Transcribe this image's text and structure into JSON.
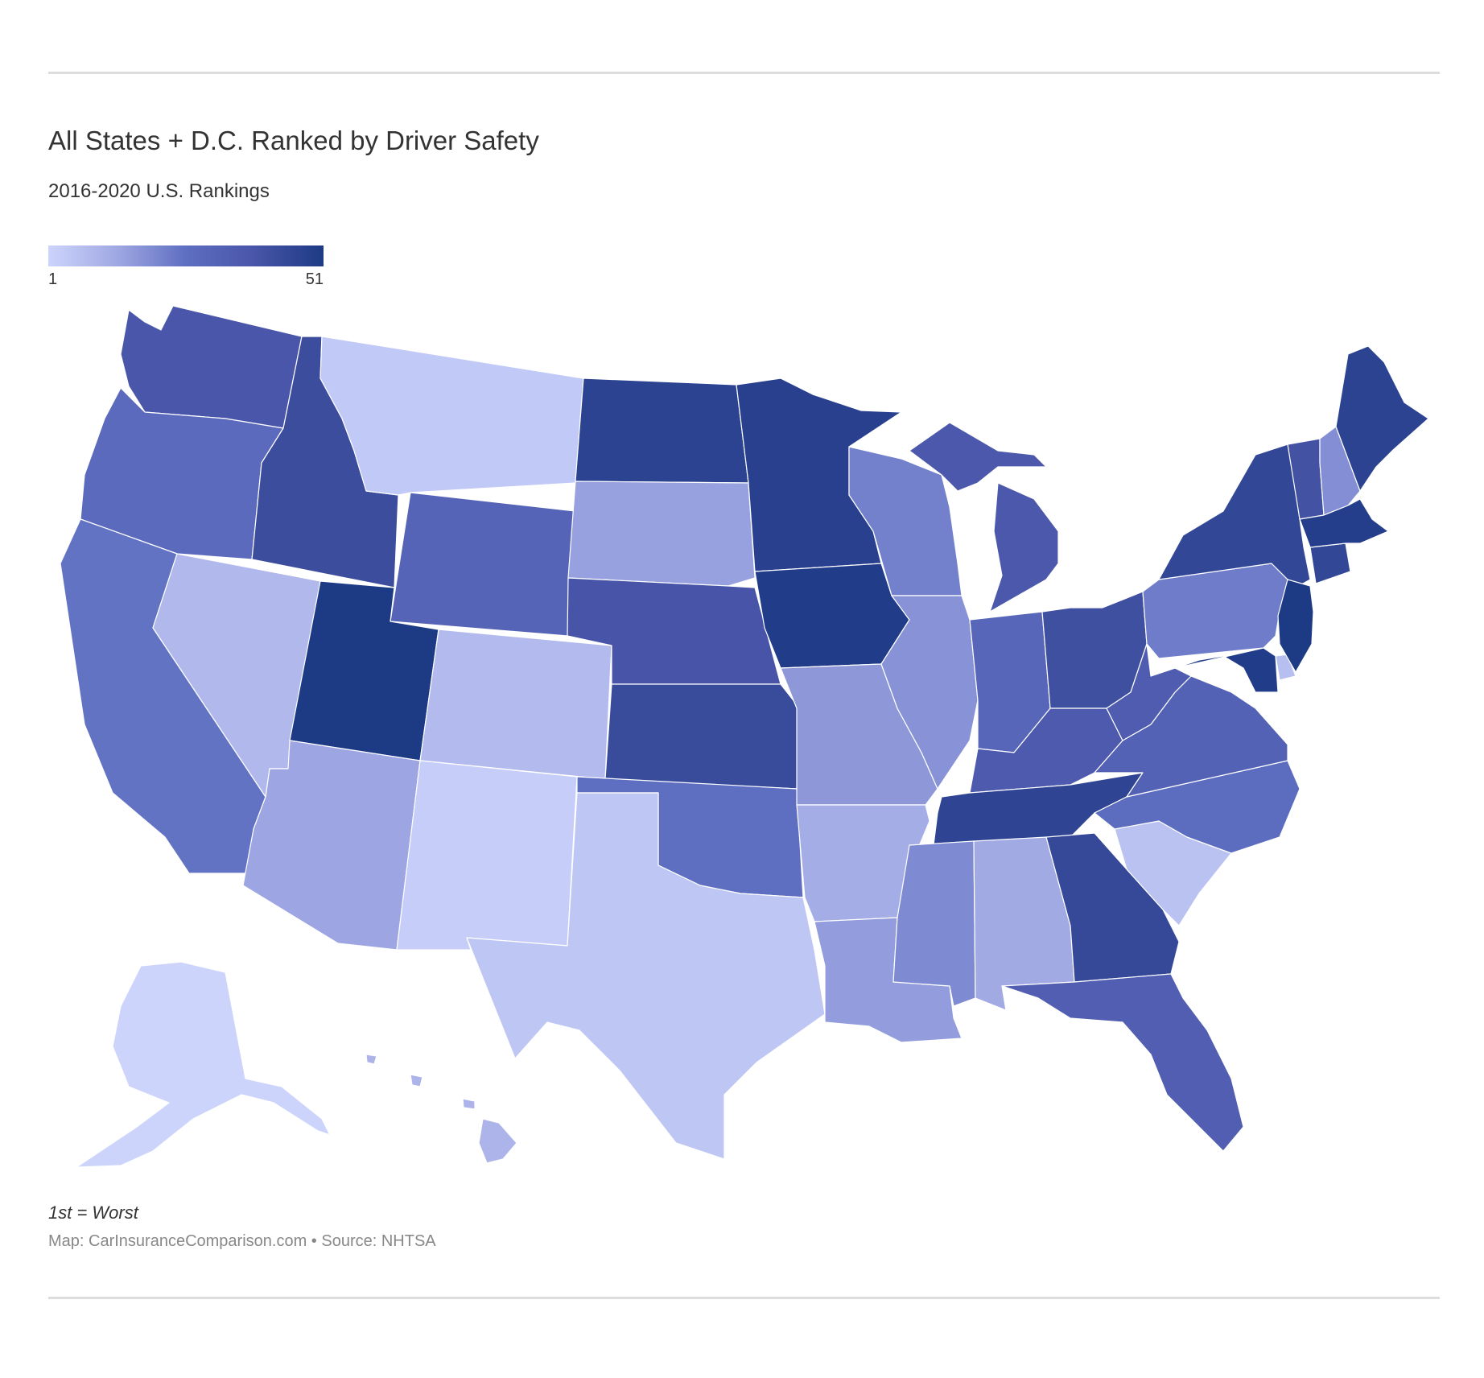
{
  "header": {
    "title": "All States + D.C. Ranked by Driver Safety",
    "subtitle": "2016-2020 U.S. Rankings"
  },
  "legend": {
    "min_label": "1",
    "max_label": "51",
    "min_color": "#ccd4fc",
    "max_color": "#1d3a85"
  },
  "footer": {
    "note": "1st = Worst",
    "credit": "Map: CarInsuranceComparison.com • Source: NHTSA"
  },
  "map_data": {
    "type": "choropleth",
    "region": "United States",
    "scale_min": 1,
    "scale_max": 51,
    "states": [
      {
        "code": "AK",
        "value": 1
      },
      {
        "code": "NM",
        "value": 3
      },
      {
        "code": "MT",
        "value": 4
      },
      {
        "code": "TX",
        "value": 5
      },
      {
        "code": "SC",
        "value": 6
      },
      {
        "code": "DE",
        "value": 7
      },
      {
        "code": "CO",
        "value": 8
      },
      {
        "code": "NV",
        "value": 9
      },
      {
        "code": "HI",
        "value": 10
      },
      {
        "code": "AR",
        "value": 12
      },
      {
        "code": "AL",
        "value": 13
      },
      {
        "code": "AZ",
        "value": 14
      },
      {
        "code": "SD",
        "value": 15
      },
      {
        "code": "LA",
        "value": 16
      },
      {
        "code": "MO",
        "value": 17
      },
      {
        "code": "IL",
        "value": 18
      },
      {
        "code": "NH",
        "value": 19
      },
      {
        "code": "MS",
        "value": 20
      },
      {
        "code": "WI",
        "value": 22
      },
      {
        "code": "PA",
        "value": 23
      },
      {
        "code": "CA",
        "value": 25
      },
      {
        "code": "OK",
        "value": 26
      },
      {
        "code": "NC",
        "value": 27
      },
      {
        "code": "OR",
        "value": 28
      },
      {
        "code": "IN",
        "value": 30
      },
      {
        "code": "WY",
        "value": 31
      },
      {
        "code": "VA",
        "value": 32
      },
      {
        "code": "FL",
        "value": 34
      },
      {
        "code": "WV",
        "value": 35
      },
      {
        "code": "KY",
        "value": 36
      },
      {
        "code": "MI",
        "value": 37
      },
      {
        "code": "WA",
        "value": 38
      },
      {
        "code": "NE",
        "value": 39
      },
      {
        "code": "VT",
        "value": 40
      },
      {
        "code": "OH",
        "value": 41
      },
      {
        "code": "ID",
        "value": 42
      },
      {
        "code": "KS",
        "value": 43
      },
      {
        "code": "GA",
        "value": 44
      },
      {
        "code": "CT",
        "value": 45
      },
      {
        "code": "NY",
        "value": 45
      },
      {
        "code": "TN",
        "value": 46
      },
      {
        "code": "ND",
        "value": 47
      },
      {
        "code": "ME",
        "value": 47
      },
      {
        "code": "MN",
        "value": 48
      },
      {
        "code": "MA",
        "value": 49
      },
      {
        "code": "IA",
        "value": 50
      },
      {
        "code": "MD",
        "value": 50
      },
      {
        "code": "NJ",
        "value": 51
      },
      {
        "code": "UT",
        "value": 51
      }
    ]
  }
}
